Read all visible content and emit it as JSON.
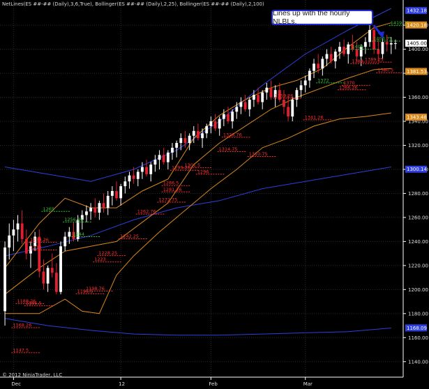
{
  "header": {
    "studies": "NetLines(ES ##-## (Daily),3,6,True), Bollinger(ES ##-## (Daily),2,25), Bollinger(ES ##-## (Daily),2,100)"
  },
  "copyright": "© 2012 NinjaTrader, LLC",
  "callout": {
    "text": "Lines up with the hourly NLBLs."
  },
  "colors": {
    "background": "#000000",
    "up_candle": "#ffffff",
    "down_candle": "#e0202e",
    "bb25": "#d98a1a",
    "bb100": "#2f3fe0",
    "nl_red": "#ff3030",
    "nl_green": "#30c030",
    "callout_border": "#1f2bd6"
  },
  "chart_data": {
    "type": "candlestick",
    "ylim": [
      1130,
      1434
    ],
    "y_ticks": [
      1140,
      1160,
      1180,
      1200,
      1220,
      1240,
      1260,
      1280,
      1300,
      1320,
      1340,
      1360,
      1380,
      1400,
      1420
    ],
    "x_ticks": [
      {
        "label": "Dec",
        "bar": 2
      },
      {
        "label": "12",
        "bar": 27
      },
      {
        "label": "Feb",
        "bar": 48
      },
      {
        "label": "Mar",
        "bar": 70
      }
    ],
    "bar_count": 92,
    "price_boxes": [
      {
        "label": "1432.18",
        "value": 1432.18,
        "color": "#2f3fe0"
      },
      {
        "label": "1420.18",
        "value": 1420.18,
        "color": "#d98a1a"
      },
      {
        "label": "1405.00",
        "value": 1405.0,
        "color": "#ffffff"
      },
      {
        "label": "1381.53",
        "value": 1381.53,
        "color": "#d98a1a"
      },
      {
        "label": "1343.48",
        "value": 1343.48,
        "color": "#d98a1a"
      },
      {
        "label": "1300.14",
        "value": 1300.14,
        "color": "#2f3fe0"
      },
      {
        "label": "1168.09",
        "value": 1168.09,
        "color": "#2f3fe0"
      }
    ],
    "net_lines": [
      {
        "label": "1147.5",
        "value": 1147.5,
        "bar": 2,
        "color": "red"
      },
      {
        "label": "1168.26",
        "value": 1168.26,
        "bar": 2,
        "color": "red"
      },
      {
        "label": "1188.26",
        "value": 1188.26,
        "bar": 3,
        "color": "red"
      },
      {
        "label": "1186.5",
        "value": 1186.5,
        "bar": 5,
        "color": "red"
      },
      {
        "label": "1196.5",
        "value": 1196.5,
        "bar": 17,
        "color": "red"
      },
      {
        "label": "1198.76",
        "value": 1198.76,
        "bar": 19,
        "color": "red"
      },
      {
        "label": "1223",
        "value": 1223,
        "bar": 21,
        "color": "red"
      },
      {
        "label": "1228.25",
        "value": 1228.25,
        "bar": 22,
        "color": "red"
      },
      {
        "label": "1233",
        "value": 1233,
        "bar": 6,
        "color": "red"
      },
      {
        "label": "1239.26",
        "value": 1239.26,
        "bar": 6,
        "color": "red"
      },
      {
        "label": "1242.25",
        "value": 1242.25,
        "bar": 27,
        "color": "red"
      },
      {
        "label": "1244",
        "value": 1244,
        "bar": 16,
        "color": "green"
      },
      {
        "label": "1256.26",
        "value": 1256.26,
        "bar": 14,
        "color": "green"
      },
      {
        "label": "1262.76",
        "value": 1262.76,
        "bar": 31,
        "color": "red"
      },
      {
        "label": "1265",
        "value": 1265,
        "bar": 9,
        "color": "green"
      },
      {
        "label": "1272.75",
        "value": 1272.75,
        "bar": 36,
        "color": "red"
      },
      {
        "label": "1281.26",
        "value": 1281.26,
        "bar": 37,
        "color": "red"
      },
      {
        "label": "1286.5",
        "value": 1286.5,
        "bar": 37,
        "color": "red"
      },
      {
        "label": "1296",
        "value": 1296,
        "bar": 45,
        "color": "red"
      },
      {
        "label": "1301.5",
        "value": 1301.5,
        "bar": 42,
        "color": "red"
      },
      {
        "label": "1299.26",
        "value": 1299.26,
        "bar": 39,
        "color": "red"
      },
      {
        "label": "1326.76",
        "value": 1326.76,
        "bar": 51,
        "color": "red"
      },
      {
        "label": "1314.75",
        "value": 1314.75,
        "bar": 50,
        "color": "red"
      },
      {
        "label": "1310.75",
        "value": 1310.75,
        "bar": 57,
        "color": "red"
      },
      {
        "label": "1341.26",
        "value": 1341.26,
        "bar": 70,
        "color": "red"
      },
      {
        "label": "1359.26",
        "value": 1359.26,
        "bar": 63,
        "color": "red"
      },
      {
        "label": "1366.26",
        "value": 1366.26,
        "bar": 78,
        "color": "red"
      },
      {
        "label": "1370",
        "value": 1370,
        "bar": 79,
        "color": "red"
      },
      {
        "label": "1372",
        "value": 1372,
        "bar": 73,
        "color": "green"
      },
      {
        "label": "1380.5",
        "value": 1380.5,
        "bar": 87,
        "color": "red"
      },
      {
        "label": "1388",
        "value": 1388,
        "bar": 81,
        "color": "red"
      },
      {
        "label": "1389.25",
        "value": 1389.25,
        "bar": 84,
        "color": "red"
      },
      {
        "label": "1400",
        "value": 1400,
        "bar": 81,
        "color": "green"
      },
      {
        "label": "1406.75",
        "value": 1406.75,
        "bar": 86,
        "color": "green"
      },
      {
        "label": "1419.75",
        "value": 1419.75,
        "bar": 90,
        "color": "green"
      }
    ],
    "bollinger_25": {
      "upper": [
        [
          0,
          1218
        ],
        [
          8,
          1255
        ],
        [
          14,
          1276
        ],
        [
          20,
          1268
        ],
        [
          26,
          1268
        ],
        [
          32,
          1282
        ],
        [
          38,
          1292
        ],
        [
          44,
          1326
        ],
        [
          50,
          1345
        ],
        [
          56,
          1358
        ],
        [
          62,
          1368
        ],
        [
          68,
          1374
        ],
        [
          74,
          1384
        ],
        [
          80,
          1402
        ],
        [
          86,
          1418
        ],
        [
          90,
          1422
        ]
      ],
      "middle": [
        [
          0,
          1196
        ],
        [
          8,
          1218
        ],
        [
          14,
          1232
        ],
        [
          20,
          1236
        ],
        [
          26,
          1240
        ],
        [
          32,
          1256
        ],
        [
          38,
          1272
        ],
        [
          44,
          1304
        ],
        [
          50,
          1322
        ],
        [
          56,
          1336
        ],
        [
          62,
          1350
        ],
        [
          68,
          1360
        ],
        [
          74,
          1368
        ],
        [
          80,
          1376
        ],
        [
          86,
          1383
        ],
        [
          90,
          1384
        ]
      ],
      "lower": [
        [
          0,
          1180
        ],
        [
          8,
          1180
        ],
        [
          14,
          1192
        ],
        [
          18,
          1182
        ],
        [
          22,
          1180
        ],
        [
          26,
          1212
        ],
        [
          30,
          1228
        ],
        [
          36,
          1248
        ],
        [
          42,
          1266
        ],
        [
          48,
          1284
        ],
        [
          54,
          1300
        ],
        [
          60,
          1318
        ],
        [
          66,
          1326
        ],
        [
          72,
          1336
        ],
        [
          78,
          1342
        ],
        [
          84,
          1344
        ],
        [
          90,
          1347
        ]
      ]
    },
    "bollinger_100": {
      "upper": [
        [
          0,
          1302
        ],
        [
          10,
          1296
        ],
        [
          20,
          1290
        ],
        [
          30,
          1300
        ],
        [
          40,
          1316
        ],
        [
          50,
          1340
        ],
        [
          60,
          1370
        ],
        [
          70,
          1396
        ],
        [
          80,
          1416
        ],
        [
          90,
          1434
        ]
      ],
      "middle": [
        [
          0,
          1228
        ],
        [
          10,
          1236
        ],
        [
          20,
          1245
        ],
        [
          30,
          1258
        ],
        [
          40,
          1268
        ],
        [
          50,
          1274
        ],
        [
          60,
          1284
        ],
        [
          70,
          1290
        ],
        [
          80,
          1296
        ],
        [
          90,
          1302
        ]
      ],
      "lower": [
        [
          0,
          1176
        ],
        [
          10,
          1170
        ],
        [
          20,
          1166
        ],
        [
          30,
          1163
        ],
        [
          40,
          1162
        ],
        [
          50,
          1162
        ],
        [
          60,
          1163
        ],
        [
          70,
          1164
        ],
        [
          80,
          1165
        ],
        [
          90,
          1168
        ]
      ]
    },
    "candles": [
      [
        1182,
        1240,
        1170,
        1235
      ],
      [
        1235,
        1255,
        1225,
        1245
      ],
      [
        1245,
        1258,
        1232,
        1250
      ],
      [
        1250,
        1262,
        1240,
        1255
      ],
      [
        1255,
        1266,
        1238,
        1242
      ],
      [
        1242,
        1250,
        1225,
        1230
      ],
      [
        1230,
        1240,
        1218,
        1236
      ],
      [
        1236,
        1248,
        1232,
        1244
      ],
      [
        1244,
        1250,
        1210,
        1215
      ],
      [
        1215,
        1225,
        1200,
        1205
      ],
      [
        1205,
        1220,
        1198,
        1218
      ],
      [
        1218,
        1230,
        1210,
        1214
      ],
      [
        1214,
        1222,
        1196,
        1198
      ],
      [
        1198,
        1240,
        1196,
        1236
      ],
      [
        1236,
        1248,
        1232,
        1244
      ],
      [
        1244,
        1252,
        1238,
        1248
      ],
      [
        1248,
        1256,
        1240,
        1242
      ],
      [
        1242,
        1262,
        1240,
        1258
      ],
      [
        1258,
        1266,
        1250,
        1262
      ],
      [
        1262,
        1270,
        1256,
        1265
      ],
      [
        1265,
        1272,
        1258,
        1268
      ],
      [
        1268,
        1276,
        1260,
        1264
      ],
      [
        1264,
        1274,
        1258,
        1272
      ],
      [
        1272,
        1280,
        1264,
        1268
      ],
      [
        1268,
        1282,
        1262,
        1278
      ],
      [
        1278,
        1286,
        1270,
        1282
      ],
      [
        1282,
        1290,
        1274,
        1276
      ],
      [
        1276,
        1288,
        1270,
        1286
      ],
      [
        1286,
        1294,
        1280,
        1290
      ],
      [
        1290,
        1298,
        1284,
        1295
      ],
      [
        1295,
        1302,
        1288,
        1292
      ],
      [
        1292,
        1300,
        1286,
        1298
      ],
      [
        1298,
        1306,
        1292,
        1302
      ],
      [
        1302,
        1308,
        1294,
        1296
      ],
      [
        1296,
        1306,
        1290,
        1304
      ],
      [
        1304,
        1312,
        1298,
        1308
      ],
      [
        1308,
        1316,
        1300,
        1312
      ],
      [
        1312,
        1318,
        1304,
        1306
      ],
      [
        1306,
        1316,
        1300,
        1314
      ],
      [
        1314,
        1322,
        1308,
        1318
      ],
      [
        1318,
        1324,
        1310,
        1322
      ],
      [
        1322,
        1330,
        1316,
        1326
      ],
      [
        1326,
        1332,
        1318,
        1322
      ],
      [
        1322,
        1330,
        1316,
        1328
      ],
      [
        1328,
        1336,
        1322,
        1332
      ],
      [
        1332,
        1338,
        1324,
        1326
      ],
      [
        1326,
        1334,
        1318,
        1330
      ],
      [
        1330,
        1338,
        1326,
        1336
      ],
      [
        1336,
        1344,
        1330,
        1340
      ],
      [
        1340,
        1346,
        1332,
        1334
      ],
      [
        1334,
        1344,
        1328,
        1342
      ],
      [
        1342,
        1350,
        1336,
        1346
      ],
      [
        1346,
        1352,
        1338,
        1340
      ],
      [
        1340,
        1350,
        1334,
        1348
      ],
      [
        1348,
        1356,
        1342,
        1352
      ],
      [
        1352,
        1360,
        1346,
        1356
      ],
      [
        1356,
        1362,
        1348,
        1350
      ],
      [
        1350,
        1360,
        1344,
        1358
      ],
      [
        1358,
        1366,
        1352,
        1362
      ],
      [
        1362,
        1368,
        1354,
        1356
      ],
      [
        1356,
        1366,
        1350,
        1364
      ],
      [
        1364,
        1372,
        1358,
        1368
      ],
      [
        1368,
        1374,
        1358,
        1360
      ],
      [
        1360,
        1370,
        1352,
        1366
      ],
      [
        1366,
        1372,
        1356,
        1358
      ],
      [
        1358,
        1366,
        1346,
        1352
      ],
      [
        1352,
        1362,
        1340,
        1344
      ],
      [
        1344,
        1360,
        1340,
        1358
      ],
      [
        1358,
        1368,
        1352,
        1366
      ],
      [
        1366,
        1374,
        1360,
        1370
      ],
      [
        1370,
        1378,
        1364,
        1374
      ],
      [
        1374,
        1384,
        1368,
        1382
      ],
      [
        1382,
        1392,
        1376,
        1388
      ],
      [
        1388,
        1396,
        1380,
        1384
      ],
      [
        1384,
        1394,
        1378,
        1392
      ],
      [
        1392,
        1400,
        1386,
        1396
      ],
      [
        1396,
        1402,
        1388,
        1390
      ],
      [
        1390,
        1400,
        1384,
        1398
      ],
      [
        1398,
        1406,
        1392,
        1402
      ],
      [
        1402,
        1408,
        1394,
        1396
      ],
      [
        1396,
        1406,
        1388,
        1404
      ],
      [
        1404,
        1412,
        1398,
        1400
      ],
      [
        1400,
        1406,
        1390,
        1394
      ],
      [
        1394,
        1404,
        1386,
        1402
      ],
      [
        1402,
        1410,
        1396,
        1406
      ],
      [
        1406,
        1420,
        1402,
        1416
      ],
      [
        1416,
        1420,
        1396,
        1400
      ],
      [
        1400,
        1408,
        1390,
        1396
      ],
      [
        1396,
        1410,
        1392,
        1406
      ],
      [
        1406,
        1412,
        1398,
        1404
      ],
      [
        1404,
        1410,
        1396,
        1405
      ],
      [
        1405,
        1408,
        1400,
        1405
      ]
    ]
  }
}
